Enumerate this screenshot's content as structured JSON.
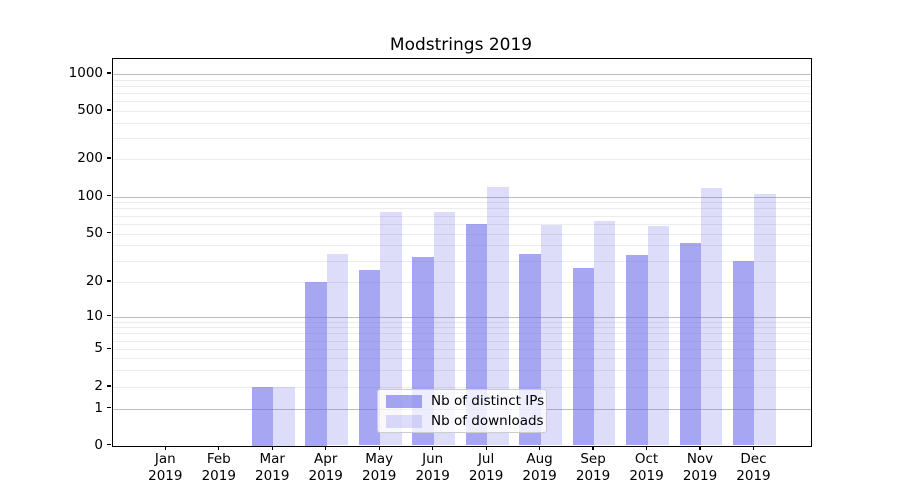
{
  "title": "Modstrings 2019",
  "colors": {
    "ips_bar": "rgba(107,107,233,0.6)",
    "ips_bar_solid": "#a6a6f2",
    "downloads_bar": "rgba(107,107,233,0.23)",
    "downloads_bar_solid": "#ddddfa",
    "grid_major": "#bdbdbd",
    "grid_minor": "#ececec",
    "axis": "#000000",
    "legend_border": "#cccccc",
    "background": "#ffffff"
  },
  "legend": {
    "position": "lower center",
    "items": [
      {
        "label": "Nb of distinct IPs",
        "color_key": "ips_bar"
      },
      {
        "label": "Nb of downloads",
        "color_key": "downloads_bar"
      }
    ]
  },
  "chart_data": {
    "type": "bar",
    "title": "Modstrings 2019",
    "xlabel": "",
    "ylabel": "",
    "yscale": "symlog",
    "ylim": [
      0,
      1300
    ],
    "grid": "both (major and minor)",
    "categories": [
      "Jan",
      "Feb",
      "Mar",
      "Apr",
      "May",
      "Jun",
      "Jul",
      "Aug",
      "Sep",
      "Oct",
      "Nov",
      "Dec"
    ],
    "x_year_line": "2019",
    "x_tick_labels": [
      "Jan 2019",
      "Feb 2019",
      "Mar 2019",
      "Apr 2019",
      "May 2019",
      "Jun 2019",
      "Jul 2019",
      "Aug 2019",
      "Sep 2019",
      "Oct 2019",
      "Nov 2019",
      "Dec 2019"
    ],
    "y_ticks": [
      0,
      1,
      2,
      5,
      10,
      20,
      50,
      100,
      200,
      500,
      1000
    ],
    "y_tick_labels": [
      "0",
      "1",
      "2",
      "5",
      "10",
      "20",
      "50",
      "100",
      "200",
      "500",
      "1000"
    ],
    "series": [
      {
        "name": "Nb of distinct IPs",
        "color": "rgba(107,107,233,0.6)",
        "values": [
          0,
          0,
          2,
          20,
          25,
          32,
          60,
          34,
          26,
          33,
          42,
          30
        ]
      },
      {
        "name": "Nb of downloads",
        "color": "rgba(107,107,233,0.23)",
        "values": [
          0,
          0,
          2,
          34,
          75,
          75,
          120,
          59,
          63,
          58,
          118,
          105
        ]
      }
    ]
  }
}
